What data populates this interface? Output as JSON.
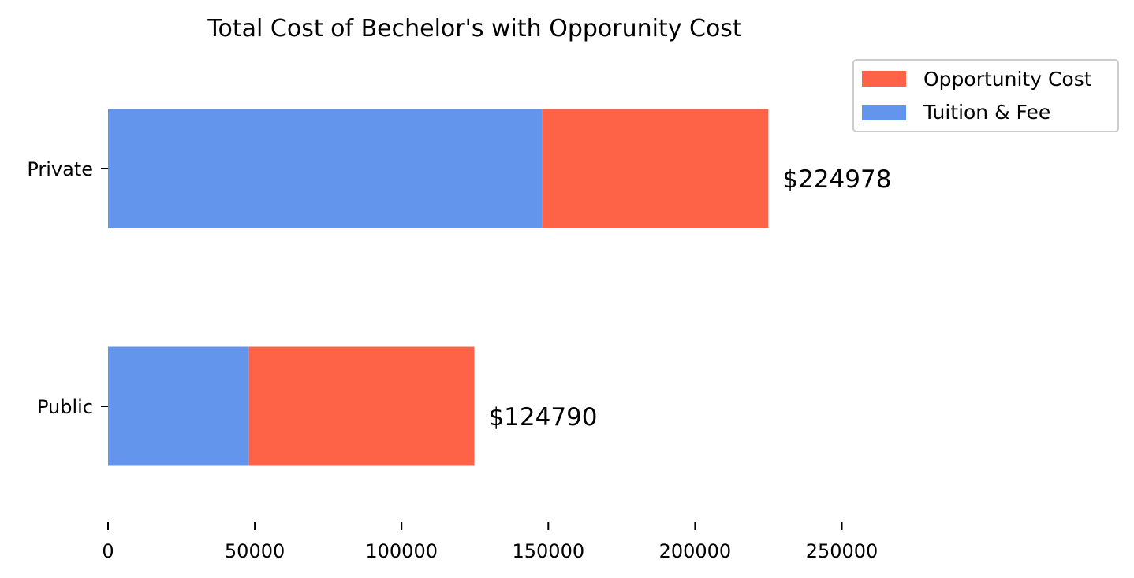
{
  "chart_data": {
    "type": "bar",
    "orientation": "horizontal",
    "stacked": true,
    "title": "Total Cost of Bechelor's with Opporunity Cost",
    "categories": [
      "Public",
      "Private"
    ],
    "series": [
      {
        "name": "Tuition & Fee",
        "values": [
          48000,
          148000
        ],
        "color": "#6495ED"
      },
      {
        "name": "Opportunity Cost",
        "values": [
          76790,
          76978
        ],
        "color": "#FF6347"
      }
    ],
    "totals_labels": [
      "$124790",
      "$224978"
    ],
    "x_ticks": [
      0,
      50000,
      100000,
      150000,
      200000,
      250000
    ],
    "x_tick_labels": [
      "0",
      "50000",
      "100000",
      "150000",
      "200000",
      "250000"
    ],
    "y_tick_labels": [
      "Public",
      "Private"
    ],
    "xlim": [
      0,
      325000
    ],
    "xlabel": "",
    "ylabel": "",
    "grid": false,
    "legend_placement": "top-right",
    "legend_entries": [
      "Opportunity Cost",
      "Tuition & Fee"
    ]
  }
}
